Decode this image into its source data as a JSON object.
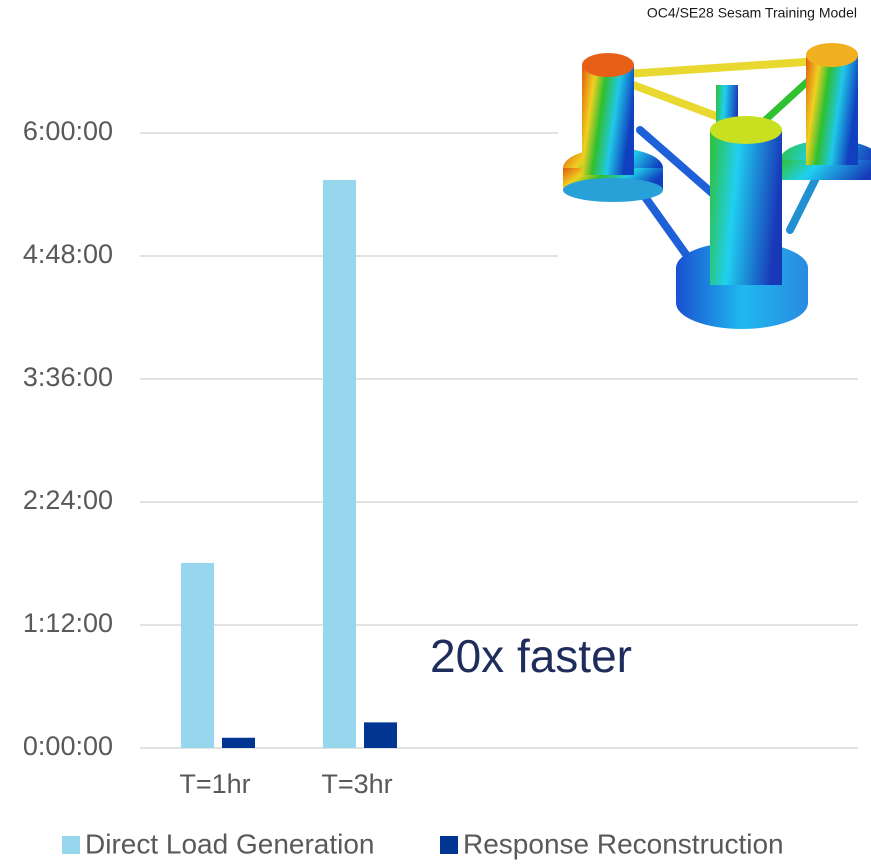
{
  "chart_data": {
    "type": "bar",
    "categories": [
      "T=1hr",
      "T=3hr"
    ],
    "series": [
      {
        "name": "Direct Load Generation",
        "color": "#97d7ee",
        "values": [
          6500,
          19950
        ]
      },
      {
        "name": "Response Reconstruction",
        "color": "#003591",
        "values": [
          360,
          900
        ]
      }
    ],
    "ylim": [
      0,
      21600
    ],
    "yticks": [
      {
        "value": 0,
        "label": "0:00:00"
      },
      {
        "value": 4320,
        "label": "1:12:00"
      },
      {
        "value": 8640,
        "label": "2:24:00"
      },
      {
        "value": 12960,
        "label": "3:36:00"
      },
      {
        "value": 17280,
        "label": "4:48:00"
      },
      {
        "value": 21600,
        "label": "6:00:00"
      }
    ],
    "grid": true,
    "legend": "bottom",
    "annotation": "20x faster",
    "image_caption": "OC4/SE28 Sesam Training Model"
  }
}
